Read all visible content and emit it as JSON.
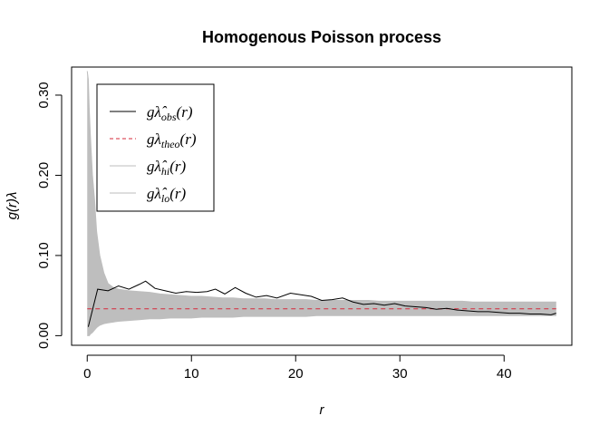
{
  "chart_data": {
    "type": "line",
    "title": "Homogenous Poisson process",
    "xlabel": "r",
    "ylabel": "g(r)λ",
    "xlim": [
      -1.5,
      46.5
    ],
    "ylim": [
      -0.012,
      0.335
    ],
    "x_ticks": [
      0,
      10,
      20,
      30,
      40
    ],
    "x_tick_labels": [
      "0",
      "10",
      "20",
      "30",
      "40"
    ],
    "y_ticks": [
      0.0,
      0.1,
      0.2,
      0.3
    ],
    "y_tick_labels": [
      "0.00",
      "0.10",
      "0.20",
      "0.30"
    ],
    "grid": false,
    "legend_position": "top-left",
    "theo_value": 0.0335,
    "series": [
      {
        "name": "obs",
        "legend_main": "gλ̂",
        "legend_sub": "obs",
        "legend_tail": "(r)",
        "color": "#000000",
        "dash": "solid",
        "x": [
          0.1,
          1.0,
          2.0,
          3.0,
          4.0,
          5.0,
          5.6,
          6.5,
          7.5,
          8.5,
          9.5,
          10.5,
          11.5,
          12.3,
          13.2,
          14.2,
          15.2,
          16.2,
          17.2,
          18.2,
          19.5,
          20.5,
          21.5,
          22.5,
          23.5,
          24.5,
          25.5,
          26.5,
          27.5,
          28.5,
          29.5,
          30.5,
          31.5,
          32.5,
          33.5,
          34.5,
          35.5,
          36.5,
          37.5,
          38.5,
          39.5,
          40.5,
          41.5,
          42.5,
          43.5,
          44.5,
          45
        ],
        "y": [
          0.011,
          0.058,
          0.056,
          0.062,
          0.058,
          0.064,
          0.068,
          0.059,
          0.056,
          0.053,
          0.055,
          0.054,
          0.055,
          0.058,
          0.052,
          0.06,
          0.053,
          0.048,
          0.05,
          0.047,
          0.053,
          0.051,
          0.049,
          0.044,
          0.045,
          0.047,
          0.042,
          0.039,
          0.04,
          0.038,
          0.04,
          0.037,
          0.036,
          0.035,
          0.033,
          0.034,
          0.032,
          0.031,
          0.03,
          0.03,
          0.029,
          0.028,
          0.028,
          0.027,
          0.027,
          0.026,
          0.028
        ]
      },
      {
        "name": "theo",
        "legend_main": "gλ",
        "legend_sub": "theo",
        "legend_tail": "(r)",
        "color": "#d6283a",
        "dash": "dashed",
        "x": [
          0,
          45
        ],
        "y": [
          0.0335,
          0.0335
        ]
      },
      {
        "name": "hi",
        "legend_main": "gλ̂",
        "legend_sub": "hi",
        "legend_tail": "(r)",
        "color": "#bebebe",
        "dash": "solid",
        "x": [
          0,
          0.1,
          0.2,
          0.3,
          0.5,
          0.7,
          0.9,
          1.2,
          1.6,
          2.0,
          2.5,
          3,
          4,
          5,
          6,
          7,
          8,
          9,
          10,
          11,
          12,
          13,
          14,
          15,
          16,
          17,
          18,
          19,
          20,
          21,
          22,
          23,
          24,
          25,
          26,
          27,
          28,
          29,
          30,
          31,
          32,
          33,
          34,
          35,
          36,
          37,
          38,
          39,
          40,
          41,
          42,
          43,
          44,
          45
        ],
        "y": [
          0.33,
          0.32,
          0.28,
          0.25,
          0.2,
          0.17,
          0.13,
          0.1,
          0.078,
          0.065,
          0.06,
          0.058,
          0.056,
          0.055,
          0.054,
          0.052,
          0.051,
          0.05,
          0.049,
          0.049,
          0.048,
          0.047,
          0.047,
          0.046,
          0.046,
          0.046,
          0.045,
          0.045,
          0.045,
          0.045,
          0.044,
          0.044,
          0.044,
          0.044,
          0.044,
          0.044,
          0.043,
          0.043,
          0.043,
          0.043,
          0.043,
          0.043,
          0.043,
          0.043,
          0.043,
          0.042,
          0.042,
          0.042,
          0.042,
          0.042,
          0.042,
          0.042,
          0.042,
          0.042
        ]
      },
      {
        "name": "lo",
        "legend_main": "gλ̂",
        "legend_sub": "lo",
        "legend_tail": "(r)",
        "color": "#bebebe",
        "dash": "solid",
        "x": [
          0,
          0.1,
          0.2,
          0.3,
          0.5,
          0.7,
          0.9,
          1.2,
          1.6,
          2.0,
          2.5,
          3,
          4,
          5,
          6,
          7,
          8,
          9,
          10,
          11,
          12,
          13,
          14,
          15,
          16,
          17,
          18,
          19,
          20,
          21,
          22,
          23,
          24,
          25,
          26,
          27,
          28,
          29,
          30,
          31,
          32,
          33,
          34,
          35,
          36,
          37,
          38,
          39,
          40,
          41,
          42,
          43,
          44,
          45
        ],
        "y": [
          0.0,
          0.0,
          0.0,
          0.002,
          0.004,
          0.007,
          0.01,
          0.013,
          0.015,
          0.016,
          0.017,
          0.018,
          0.019,
          0.02,
          0.021,
          0.021,
          0.022,
          0.022,
          0.022,
          0.023,
          0.023,
          0.023,
          0.023,
          0.024,
          0.024,
          0.024,
          0.024,
          0.024,
          0.024,
          0.024,
          0.025,
          0.025,
          0.025,
          0.025,
          0.025,
          0.025,
          0.025,
          0.025,
          0.025,
          0.025,
          0.025,
          0.025,
          0.025,
          0.025,
          0.025,
          0.025,
          0.025,
          0.025,
          0.025,
          0.025,
          0.025,
          0.025,
          0.025,
          0.025
        ]
      }
    ]
  }
}
